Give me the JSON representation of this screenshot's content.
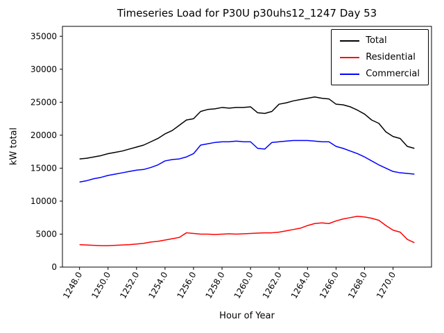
{
  "title": "Timeseries Load for P30U p30uhs12_1247  Day 53",
  "chart_data": {
    "type": "line",
    "title": "Timeseries Load for P30U p30uhs12_1247  Day 53",
    "xlabel": "Hour of Year",
    "ylabel": "kW total",
    "xlim": [
      1246.8,
      1272.7
    ],
    "ylim": [
      0,
      36500
    ],
    "grid": false,
    "legend_position": "upper right",
    "x_ticks": [
      1248,
      1250,
      1252,
      1254,
      1256,
      1258,
      1260,
      1262,
      1264,
      1266,
      1268,
      1270
    ],
    "x_tick_labels": [
      "1248.0",
      "1250.0",
      "1252.0",
      "1254.0",
      "1256.0",
      "1258.0",
      "1260.0",
      "1262.0",
      "1264.0",
      "1266.0",
      "1268.0",
      "1270.0"
    ],
    "y_ticks": [
      0,
      5000,
      10000,
      15000,
      20000,
      25000,
      30000,
      35000
    ],
    "x": [
      1248.0,
      1248.5,
      1249.0,
      1249.5,
      1250.0,
      1250.5,
      1251.0,
      1251.5,
      1252.0,
      1252.5,
      1253.0,
      1253.5,
      1254.0,
      1254.5,
      1255.0,
      1255.5,
      1256.0,
      1256.5,
      1257.0,
      1257.5,
      1258.0,
      1258.5,
      1259.0,
      1259.5,
      1260.0,
      1260.5,
      1261.0,
      1261.5,
      1262.0,
      1262.5,
      1263.0,
      1263.5,
      1264.0,
      1264.5,
      1265.0,
      1265.5,
      1266.0,
      1266.5,
      1267.0,
      1267.5,
      1268.0,
      1268.5,
      1269.0,
      1269.5,
      1270.0,
      1270.5,
      1271.0,
      1271.5
    ],
    "series": [
      {
        "name": "Total",
        "color": "#000000",
        "values": [
          16400,
          16500,
          16700,
          16900,
          17200,
          17400,
          17600,
          17900,
          18200,
          18500,
          19000,
          19500,
          20200,
          20700,
          21500,
          22300,
          22500,
          23600,
          23900,
          24000,
          24200,
          24100,
          24200,
          24200,
          24300,
          23400,
          23300,
          23600,
          24700,
          24900,
          25200,
          25400,
          25600,
          25800,
          25600,
          25500,
          24700,
          24600,
          24300,
          23800,
          23200,
          22300,
          21800,
          20500,
          19800,
          19500,
          18300,
          18000
        ]
      },
      {
        "name": "Residential",
        "color": "#ff0000",
        "values": [
          3400,
          3350,
          3300,
          3250,
          3250,
          3300,
          3350,
          3400,
          3500,
          3600,
          3800,
          3900,
          4100,
          4300,
          4500,
          5200,
          5100,
          5000,
          5000,
          4950,
          5000,
          5050,
          5000,
          5050,
          5100,
          5150,
          5200,
          5200,
          5300,
          5500,
          5700,
          5900,
          6300,
          6600,
          6700,
          6600,
          7000,
          7300,
          7500,
          7700,
          7600,
          7400,
          7100,
          6300,
          5600,
          5300,
          4200,
          3700
        ]
      },
      {
        "name": "Commercial",
        "color": "#0000ff",
        "values": [
          12900,
          13100,
          13400,
          13600,
          13900,
          14100,
          14300,
          14500,
          14700,
          14800,
          15100,
          15500,
          16100,
          16300,
          16400,
          16700,
          17200,
          18500,
          18700,
          18900,
          19000,
          19000,
          19100,
          19000,
          19000,
          18000,
          17900,
          18900,
          19000,
          19100,
          19200,
          19200,
          19200,
          19100,
          19000,
          19000,
          18300,
          18000,
          17600,
          17200,
          16700,
          16100,
          15500,
          15000,
          14500,
          14300,
          14200,
          14100
        ]
      }
    ]
  }
}
